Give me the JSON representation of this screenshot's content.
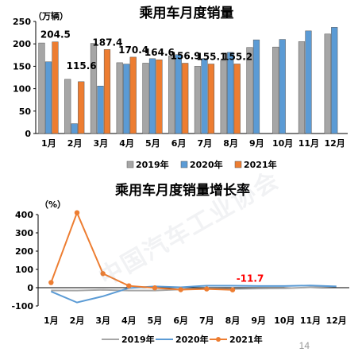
{
  "watermark": "中国汽车工业协会",
  "page_number": "14",
  "chart_data": [
    {
      "type": "bar",
      "title": "乘用车月度销量",
      "ylabel": "（万辆）",
      "categories": [
        "1月",
        "2月",
        "3月",
        "4月",
        "5月",
        "6月",
        "7月",
        "8月",
        "9月",
        "10月",
        "11月",
        "12月"
      ],
      "ylim": [
        0,
        250
      ],
      "yticks": [
        0,
        50,
        100,
        150,
        200,
        250
      ],
      "grid": false,
      "legend_position": "bottom",
      "series": [
        {
          "name": "2019年",
          "color": "#a6a6a6",
          "values": [
            202,
            121,
            201,
            158,
            157,
            173,
            150,
            163,
            192,
            193,
            205,
            222
          ]
        },
        {
          "name": "2020年",
          "color": "#5b9bd5",
          "values": [
            160,
            22,
            106,
            155,
            167,
            176,
            167,
            181,
            209,
            210,
            229,
            237
          ]
        },
        {
          "name": "2021年",
          "color": "#ed7d31",
          "values": [
            204.5,
            115.6,
            187.4,
            170.4,
            164.6,
            156.9,
            155.1,
            155.2,
            null,
            null,
            null,
            null
          ]
        }
      ],
      "data_labels": [
        "204.5",
        "115.6",
        "187.4",
        "170.4",
        "164.6",
        "156.9",
        "155.1",
        "155.2"
      ]
    },
    {
      "type": "line",
      "title": "乘用车月度销量增长率",
      "ylabel": "（%）",
      "categories": [
        "1月",
        "2月",
        "3月",
        "4月",
        "5月",
        "6月",
        "7月",
        "8月",
        "9月",
        "10月",
        "11月",
        "12月"
      ],
      "ylim": [
        -100,
        400
      ],
      "yticks": [
        -100,
        0,
        100,
        200,
        300,
        400
      ],
      "grid": false,
      "legend_position": "bottom",
      "series": [
        {
          "name": "2019年",
          "color": "#a6a6a6",
          "values": [
            -15,
            -16,
            -12,
            -16,
            -16,
            -10,
            -5,
            -7,
            -5,
            -4,
            2,
            7
          ]
        },
        {
          "name": "2020年",
          "color": "#5b9bd5",
          "values": [
            -21,
            -81,
            -47,
            -2,
            7,
            2,
            11,
            11,
            9,
            9,
            12,
            7
          ]
        },
        {
          "name": "2021年",
          "color": "#ed7d31",
          "values": [
            28,
            410,
            77,
            10,
            -1,
            -11,
            -7,
            -11.7,
            null,
            null,
            null,
            null
          ]
        }
      ],
      "annotation": "-11.7"
    }
  ]
}
